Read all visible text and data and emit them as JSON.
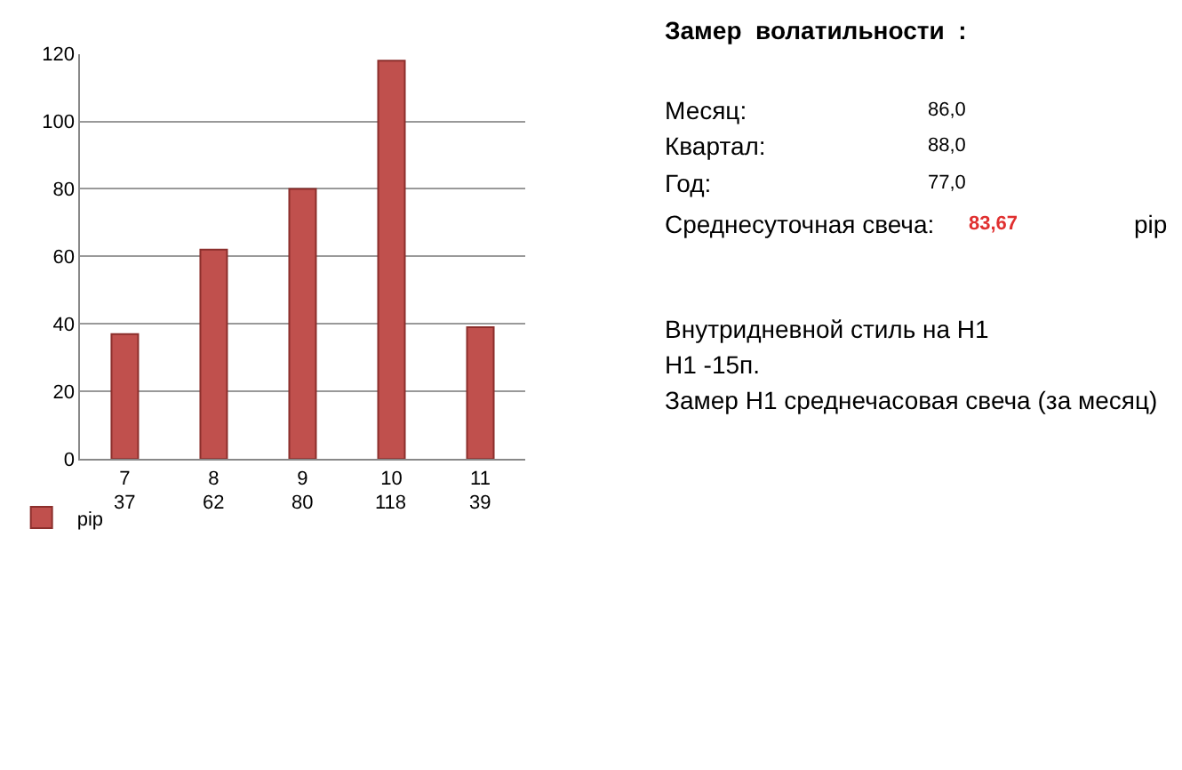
{
  "chart_data": {
    "type": "bar",
    "categories": [
      "7",
      "8",
      "9",
      "10",
      "11"
    ],
    "series": [
      {
        "name": "pip",
        "color": "#c0504d",
        "values": [
          37,
          62,
          80,
          118,
          39
        ]
      }
    ],
    "ylim": [
      0,
      120
    ],
    "yticks": [
      0,
      20,
      40,
      60,
      80,
      100,
      120
    ],
    "grid": "y",
    "data_labels": true,
    "legend": "bottom left",
    "annotations": [
      "Замер  волатильности  :",
      "Месяц:",
      "86,0",
      "Квартал:",
      "88,0",
      "Год:",
      "77,0",
      "Среднесуточная свеча:",
      "83,67",
      "pip",
      "Внутридневной стиль на H1",
      "H1 -15п.",
      "Замер H1 среднечасовая свеча (за месяц)"
    ]
  }
}
